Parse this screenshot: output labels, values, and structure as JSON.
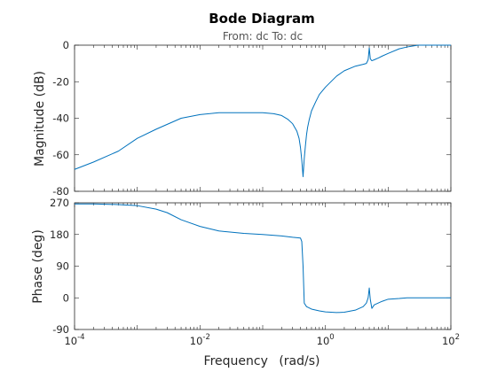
{
  "figure": {
    "title": "Bode Diagram",
    "subtitle": "From: dc  To: dc",
    "xlabel_name": "Frequency",
    "xlabel_unit": "(rad/s)",
    "line_color": "#0072bd"
  },
  "chart_data": [
    {
      "type": "line",
      "name": "magnitude",
      "ylabel": "Magnitude (dB)",
      "xscale": "log",
      "xlim": [
        0.0001,
        100
      ],
      "ylim": [
        -80,
        0
      ],
      "yticks": [
        0,
        -20,
        -40,
        -60,
        -80
      ],
      "grid": false,
      "x": [
        0.0001,
        0.0002,
        0.0005,
        0.001,
        0.002,
        0.005,
        0.01,
        0.02,
        0.05,
        0.1,
        0.15,
        0.2,
        0.25,
        0.3,
        0.35,
        0.38,
        0.4,
        0.42,
        0.44,
        0.46,
        0.48,
        0.5,
        0.52,
        0.55,
        0.6,
        0.7,
        0.8,
        1,
        1.5,
        2,
        3,
        4,
        4.5,
        4.8,
        5,
        5.2,
        5.5,
        6,
        7,
        8,
        10,
        15,
        20,
        30,
        50,
        70,
        100
      ],
      "y": [
        -68,
        -64,
        -58,
        -51,
        -46,
        -40,
        -38,
        -37,
        -37,
        -37,
        -37.5,
        -38.5,
        -40.5,
        -43,
        -47,
        -51,
        -56,
        -63,
        -72,
        -62,
        -55,
        -49,
        -45,
        -41,
        -36,
        -31,
        -27,
        -23,
        -17,
        -14,
        -11.5,
        -10.5,
        -10,
        -8,
        -1.5,
        -7.5,
        -8.5,
        -8,
        -7,
        -6,
        -4.5,
        -2,
        -1,
        0,
        0,
        0,
        0
      ]
    },
    {
      "type": "line",
      "name": "phase",
      "ylabel": "Phase (deg)",
      "xscale": "log",
      "xlim": [
        0.0001,
        100
      ],
      "ylim": [
        -90,
        270
      ],
      "yticks": [
        270,
        180,
        90,
        0,
        -90
      ],
      "xticks": [
        "10^-4",
        "10^-2",
        "10^0",
        "10^2"
      ],
      "grid": false,
      "x": [
        0.0001,
        0.0002,
        0.0005,
        0.001,
        0.002,
        0.003,
        0.005,
        0.01,
        0.02,
        0.05,
        0.1,
        0.2,
        0.3,
        0.4,
        0.42,
        0.44,
        0.46,
        0.5,
        0.6,
        0.8,
        1,
        1.5,
        2,
        3,
        4,
        4.5,
        4.8,
        5,
        5.2,
        5.5,
        6,
        8,
        10,
        15,
        20,
        30,
        50,
        100
      ],
      "y": [
        267,
        267,
        265,
        262,
        252,
        242,
        222,
        203,
        190,
        183,
        180,
        176,
        172,
        170,
        160,
        90,
        -15,
        -25,
        -32,
        -37,
        -40,
        -42,
        -41,
        -35,
        -25,
        -15,
        0,
        28,
        -5,
        -30,
        -20,
        -10,
        -4,
        -2,
        0,
        0,
        0,
        0
      ]
    }
  ]
}
